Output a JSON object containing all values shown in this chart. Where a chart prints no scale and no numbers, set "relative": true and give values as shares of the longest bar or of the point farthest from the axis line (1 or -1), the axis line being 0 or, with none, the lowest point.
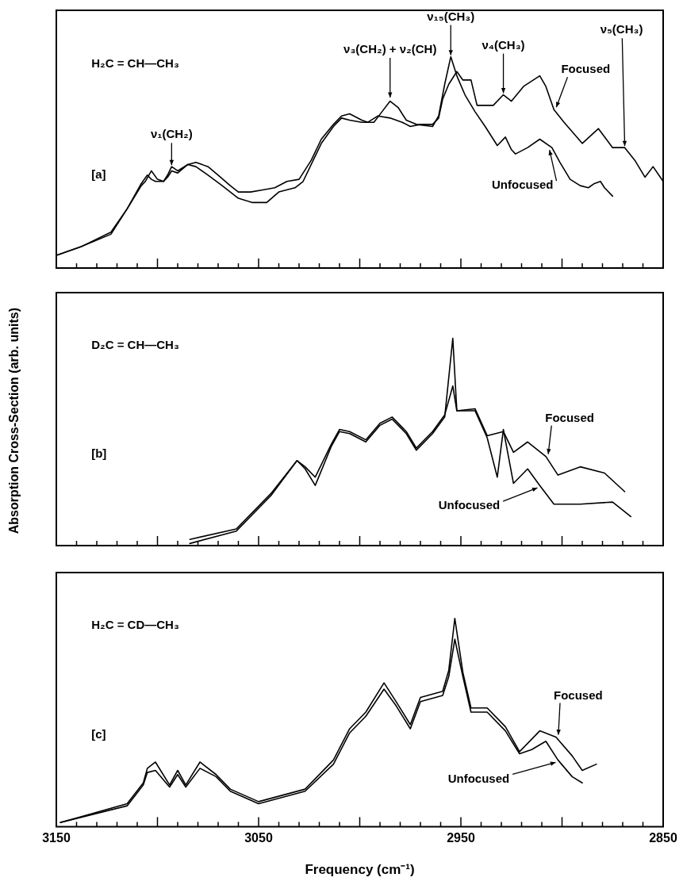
{
  "chart_data": [
    {
      "type": "line",
      "relative": true,
      "marker": "none",
      "line_style": "solid",
      "tick_labels": false,
      "xlim": [
        3150,
        2850
      ],
      "xticks": [
        3150,
        {
          "value": 3140,
          "label": null
        },
        {
          "value": 3130,
          "label": null
        },
        {
          "value": 3120,
          "label": null
        },
        {
          "value": 3110,
          "label": null
        },
        {
          "value": 3100,
          "label": null
        },
        {
          "value": 3090,
          "label": null
        },
        {
          "value": 3080,
          "label": null
        },
        {
          "value": 3070,
          "label": null
        },
        {
          "value": 3060,
          "label": null
        },
        3050,
        {
          "value": 3040,
          "label": null
        },
        {
          "value": 3030,
          "label": null
        },
        {
          "value": 3020,
          "label": null
        },
        {
          "value": 3010,
          "label": null
        },
        {
          "value": 3000,
          "label": null
        },
        {
          "value": 2990,
          "label": null
        },
        {
          "value": 2980,
          "label": null
        },
        {
          "value": 2970,
          "label": null
        },
        {
          "value": 2960,
          "label": null
        },
        2950,
        {
          "value": 2940,
          "label": null
        },
        {
          "value": 2930,
          "label": null
        },
        {
          "value": 2920,
          "label": null
        },
        {
          "value": 2910,
          "label": null
        },
        {
          "value": 2900,
          "label": null
        },
        {
          "value": 2890,
          "label": null
        },
        {
          "value": 2880,
          "label": null
        },
        {
          "value": 2870,
          "label": null
        },
        {
          "value": 2860,
          "label": null
        },
        2850
      ],
      "annotations": [
        "H₂C = CH—CH₃",
        "[a]",
        {
          "text": "ν₁(CH₂)",
          "x": 3093,
          "y": 0.48
        },
        {
          "text": "ν₃(CH₂) + ν₂(CH)",
          "x": 2985,
          "y": 0.8
        },
        {
          "text": "ν₁₅(CH₃)",
          "x": 2955,
          "y": 1.0
        },
        {
          "text": "ν₄(CH₃)",
          "x": 2929,
          "y": 0.82
        },
        {
          "text": "ν₅(CH₃)",
          "x": 2869,
          "y": 0.57
        }
      ],
      "series": [
        {
          "name": "Focused",
          "color": "#000000",
          "x": [
            3150,
            3138,
            3123,
            3115,
            3108,
            3105,
            3103,
            3101,
            3097,
            3095,
            3093,
            3090,
            3085,
            3081,
            3075,
            3070,
            3064,
            3060,
            3054,
            3048,
            3042,
            3036,
            3030,
            3028,
            3024,
            3019,
            3013,
            3009,
            3005,
            2999,
            2996,
            2991,
            2985,
            2979,
            2975,
            2970,
            2964,
            2961,
            2959,
            2956,
            2952,
            2949,
            2945,
            2942,
            2934,
            2929,
            2925,
            2919,
            2911,
            2908,
            2904,
            2899,
            2890,
            2882,
            2875,
            2869,
            2864,
            2859,
            2855,
            2850
          ],
          "values": [
            0.06,
            0.1,
            0.17,
            0.28,
            0.4,
            0.44,
            0.42,
            0.41,
            0.41,
            0.44,
            0.48,
            0.46,
            0.49,
            0.5,
            0.48,
            0.44,
            0.39,
            0.36,
            0.36,
            0.37,
            0.38,
            0.41,
            0.42,
            0.45,
            0.51,
            0.61,
            0.68,
            0.72,
            0.73,
            0.7,
            0.69,
            0.72,
            0.71,
            0.69,
            0.67,
            0.68,
            0.68,
            0.71,
            0.8,
            0.87,
            0.93,
            0.89,
            0.89,
            0.77,
            0.77,
            0.82,
            0.79,
            0.86,
            0.91,
            0.86,
            0.75,
            0.69,
            0.59,
            0.66,
            0.57,
            0.57,
            0.51,
            0.43,
            0.48,
            0.41
          ]
        },
        {
          "name": "Unfocused",
          "color": "#000000",
          "x": [
            3150,
            3138,
            3123,
            3115,
            3108,
            3106,
            3103,
            3100,
            3097,
            3095,
            3093,
            3090,
            3085,
            3081,
            3075,
            3068,
            3060,
            3053,
            3046,
            3040,
            3032,
            3028,
            3024,
            3019,
            3013,
            3009,
            3005,
            2999,
            2993,
            2989,
            2985,
            2981,
            2977,
            2972,
            2964,
            2961,
            2958,
            2955,
            2952,
            2948,
            2943,
            2938,
            2934,
            2932,
            2928,
            2925,
            2923,
            2917,
            2911,
            2905,
            2901,
            2896,
            2891,
            2887,
            2884,
            2881,
            2879,
            2875
          ],
          "values": [
            0.06,
            0.1,
            0.16,
            0.28,
            0.39,
            0.41,
            0.46,
            0.42,
            0.41,
            0.43,
            0.46,
            0.45,
            0.49,
            0.48,
            0.44,
            0.39,
            0.33,
            0.31,
            0.31,
            0.36,
            0.38,
            0.41,
            0.49,
            0.59,
            0.67,
            0.71,
            0.7,
            0.69,
            0.69,
            0.74,
            0.79,
            0.76,
            0.7,
            0.68,
            0.67,
            0.72,
            0.87,
            1.0,
            0.91,
            0.82,
            0.74,
            0.67,
            0.61,
            0.58,
            0.62,
            0.56,
            0.54,
            0.57,
            0.61,
            0.57,
            0.5,
            0.42,
            0.39,
            0.38,
            0.4,
            0.41,
            0.38,
            0.34
          ]
        }
      ]
    },
    {
      "type": "line",
      "relative": true,
      "marker": "none",
      "line_style": "solid",
      "tick_labels": false,
      "xlim": [
        3150,
        2850
      ],
      "ylabel": "Absorption Cross-Section (arb. units)",
      "xticks": [
        3150,
        {
          "value": 3140,
          "label": null
        },
        {
          "value": 3130,
          "label": null
        },
        {
          "value": 3120,
          "label": null
        },
        {
          "value": 3110,
          "label": null
        },
        {
          "value": 3100,
          "label": null
        },
        {
          "value": 3090,
          "label": null
        },
        {
          "value": 3080,
          "label": null
        },
        {
          "value": 3070,
          "label": null
        },
        {
          "value": 3060,
          "label": null
        },
        3050,
        {
          "value": 3040,
          "label": null
        },
        {
          "value": 3030,
          "label": null
        },
        {
          "value": 3020,
          "label": null
        },
        {
          "value": 3010,
          "label": null
        },
        {
          "value": 3000,
          "label": null
        },
        {
          "value": 2990,
          "label": null
        },
        {
          "value": 2980,
          "label": null
        },
        {
          "value": 2970,
          "label": null
        },
        {
          "value": 2960,
          "label": null
        },
        2950,
        {
          "value": 2940,
          "label": null
        },
        {
          "value": 2930,
          "label": null
        },
        {
          "value": 2920,
          "label": null
        },
        {
          "value": 2910,
          "label": null
        },
        {
          "value": 2900,
          "label": null
        },
        {
          "value": 2890,
          "label": null
        },
        {
          "value": 2880,
          "label": null
        },
        {
          "value": 2870,
          "label": null
        },
        {
          "value": 2860,
          "label": null
        },
        2850
      ],
      "annotations": [
        "D₂C = CH—CH₃",
        "[b]"
      ],
      "series": [
        {
          "name": "Focused",
          "color": "#000000",
          "x": [
            3084,
            3061,
            3053,
            3044,
            3031,
            3027,
            3022,
            3014,
            3010,
            3005,
            2997,
            2990,
            2984,
            2977,
            2972,
            2964,
            2958,
            2954,
            2952,
            2943,
            2937,
            2929,
            2924,
            2917,
            2908,
            2902,
            2891,
            2879,
            2869
          ],
          "values": [
            0.03,
            0.08,
            0.16,
            0.25,
            0.41,
            0.38,
            0.33,
            0.49,
            0.56,
            0.55,
            0.51,
            0.59,
            0.62,
            0.55,
            0.47,
            0.55,
            0.63,
            0.77,
            0.65,
            0.66,
            0.53,
            0.55,
            0.45,
            0.5,
            0.43,
            0.34,
            0.38,
            0.35,
            0.26
          ]
        },
        {
          "name": "Unfocused",
          "color": "#000000",
          "x": [
            3084,
            3061,
            3053,
            3044,
            3031,
            3027,
            3022,
            3014,
            3010,
            3005,
            2997,
            2990,
            2984,
            2977,
            2972,
            2964,
            2958,
            2954,
            2952,
            2943,
            2937,
            2932,
            2929,
            2924,
            2917,
            2911,
            2904,
            2891,
            2875,
            2866
          ],
          "values": [
            0.01,
            0.07,
            0.15,
            0.24,
            0.41,
            0.37,
            0.29,
            0.48,
            0.55,
            0.54,
            0.5,
            0.58,
            0.61,
            0.54,
            0.46,
            0.54,
            0.62,
            1.0,
            0.65,
            0.65,
            0.52,
            0.33,
            0.56,
            0.3,
            0.37,
            0.29,
            0.2,
            0.2,
            0.21,
            0.14
          ]
        }
      ]
    },
    {
      "type": "line",
      "relative": true,
      "marker": "none",
      "line_style": "solid",
      "xlim": [
        3150,
        2850
      ],
      "xlabel": "Frequency (cm⁻¹)",
      "xticks": [
        3150,
        {
          "value": 3140,
          "label": null
        },
        {
          "value": 3130,
          "label": null
        },
        {
          "value": 3120,
          "label": null
        },
        {
          "value": 3110,
          "label": null
        },
        {
          "value": 3100,
          "label": null
        },
        {
          "value": 3090,
          "label": null
        },
        {
          "value": 3080,
          "label": null
        },
        {
          "value": 3070,
          "label": null
        },
        {
          "value": 3060,
          "label": null
        },
        3050,
        {
          "value": 3040,
          "label": null
        },
        {
          "value": 3030,
          "label": null
        },
        {
          "value": 3020,
          "label": null
        },
        {
          "value": 3010,
          "label": null
        },
        {
          "value": 3000,
          "label": null
        },
        {
          "value": 2990,
          "label": null
        },
        {
          "value": 2980,
          "label": null
        },
        {
          "value": 2970,
          "label": null
        },
        {
          "value": 2960,
          "label": null
        },
        2950,
        {
          "value": 2940,
          "label": null
        },
        {
          "value": 2930,
          "label": null
        },
        {
          "value": 2920,
          "label": null
        },
        {
          "value": 2910,
          "label": null
        },
        {
          "value": 2900,
          "label": null
        },
        {
          "value": 2890,
          "label": null
        },
        {
          "value": 2880,
          "label": null
        },
        {
          "value": 2870,
          "label": null
        },
        {
          "value": 2860,
          "label": null
        },
        2850
      ],
      "annotations": [
        "H₂C = CD—CH₃",
        "[c]"
      ],
      "series": [
        {
          "name": "Focused",
          "color": "#000000",
          "x": [
            3148,
            3115,
            3107,
            3105,
            3101,
            3094,
            3090,
            3086,
            3079,
            3071,
            3064,
            3050,
            3027,
            3013,
            3005,
            2997,
            2988,
            2982,
            2975,
            2970,
            2959,
            2956,
            2953,
            2949,
            2945,
            2937,
            2928,
            2921,
            2911,
            2903,
            2895,
            2890,
            2883
          ],
          "values": [
            0.02,
            0.11,
            0.21,
            0.28,
            0.31,
            0.2,
            0.27,
            0.2,
            0.31,
            0.25,
            0.18,
            0.12,
            0.18,
            0.32,
            0.47,
            0.55,
            0.69,
            0.6,
            0.49,
            0.62,
            0.65,
            0.75,
            1.0,
            0.74,
            0.57,
            0.57,
            0.48,
            0.36,
            0.46,
            0.43,
            0.34,
            0.27,
            0.3
          ]
        },
        {
          "name": "Unfocused",
          "color": "#000000",
          "x": [
            3148,
            3115,
            3107,
            3105,
            3101,
            3094,
            3090,
            3086,
            3079,
            3071,
            3064,
            3050,
            3027,
            3013,
            3005,
            2997,
            2988,
            2982,
            2975,
            2970,
            2959,
            2956,
            2953,
            2949,
            2945,
            2937,
            2928,
            2921,
            2915,
            2908,
            2902,
            2895,
            2890
          ],
          "values": [
            0.02,
            0.1,
            0.2,
            0.26,
            0.27,
            0.19,
            0.25,
            0.19,
            0.28,
            0.24,
            0.17,
            0.11,
            0.17,
            0.3,
            0.45,
            0.53,
            0.66,
            0.58,
            0.47,
            0.6,
            0.63,
            0.72,
            0.9,
            0.72,
            0.55,
            0.55,
            0.46,
            0.35,
            0.37,
            0.41,
            0.32,
            0.24,
            0.21
          ]
        }
      ]
    }
  ]
}
